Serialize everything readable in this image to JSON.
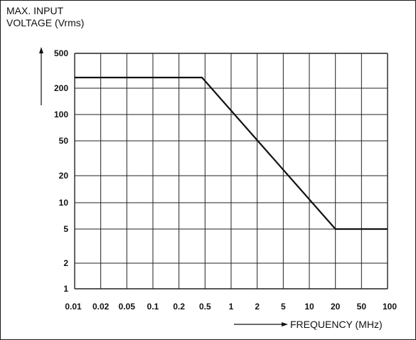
{
  "chart_data": {
    "type": "line",
    "title": "",
    "ylabel_lines": [
      "MAX. INPUT",
      "VOLTAGE (Vrms)"
    ],
    "xlabel": "FREQUENCY (MHz)",
    "x_scale": "log",
    "y_scale": "log",
    "xlim": [
      0.01,
      100
    ],
    "ylim": [
      1,
      500
    ],
    "x_ticks": [
      {
        "value": 0.01,
        "label": "0.01"
      },
      {
        "value": 0.02,
        "label": "0.02"
      },
      {
        "value": 0.05,
        "label": "0.05"
      },
      {
        "value": 0.1,
        "label": "0.1"
      },
      {
        "value": 0.2,
        "label": "0.2"
      },
      {
        "value": 0.5,
        "label": "0.5"
      },
      {
        "value": 1,
        "label": "1"
      },
      {
        "value": 2,
        "label": "2"
      },
      {
        "value": 5,
        "label": "5"
      },
      {
        "value": 10,
        "label": "10"
      },
      {
        "value": 20,
        "label": "20"
      },
      {
        "value": 50,
        "label": "50"
      },
      {
        "value": 100,
        "label": "100"
      }
    ],
    "y_ticks": [
      {
        "value": 1,
        "label": "1"
      },
      {
        "value": 2,
        "label": "2"
      },
      {
        "value": 5,
        "label": "5"
      },
      {
        "value": 10,
        "label": "10"
      },
      {
        "value": 20,
        "label": "20"
      },
      {
        "value": 50,
        "label": "50"
      },
      {
        "value": 100,
        "label": "100"
      },
      {
        "value": 200,
        "label": "200"
      },
      {
        "value": 500,
        "label": "500"
      }
    ],
    "grid": true,
    "series": [
      {
        "x": [
          0.01,
          0.45,
          20,
          100
        ],
        "y": [
          265,
          265,
          5,
          5
        ]
      }
    ],
    "colors": {
      "line": "#111111",
      "grid": "#222222"
    }
  }
}
